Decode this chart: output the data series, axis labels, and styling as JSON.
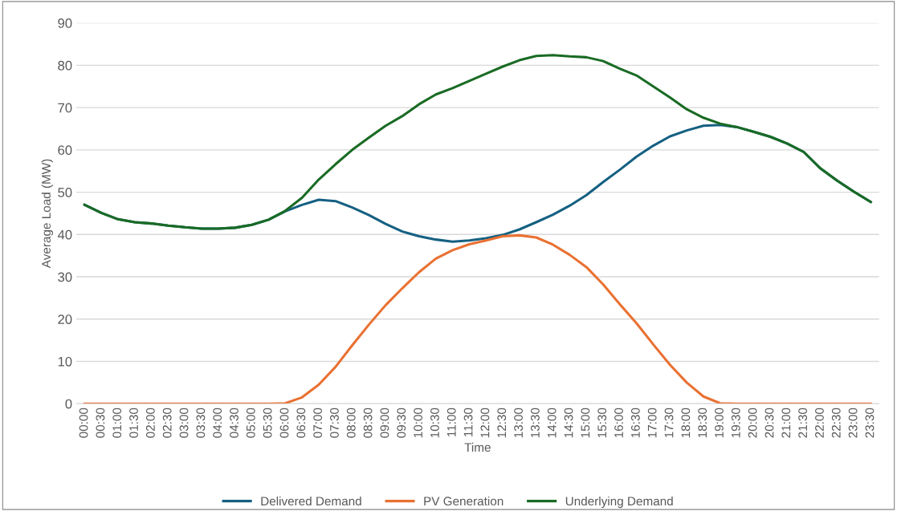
{
  "chart_data": {
    "type": "line",
    "xlabel": "Time",
    "ylabel": "Average Load (MW)",
    "categories": [
      "00:00",
      "00:30",
      "01:00",
      "01:30",
      "02:00",
      "02:30",
      "03:00",
      "03:30",
      "04:00",
      "04:30",
      "05:00",
      "05:30",
      "06:00",
      "06:30",
      "07:00",
      "07:30",
      "08:00",
      "08:30",
      "09:00",
      "09:30",
      "10:00",
      "10:30",
      "11:00",
      "11:30",
      "12:00",
      "12:30",
      "13:00",
      "13:30",
      "14:00",
      "14:30",
      "15:00",
      "15:30",
      "16:00",
      "16:30",
      "17:00",
      "17:30",
      "18:00",
      "18:30",
      "19:00",
      "19:30",
      "20:00",
      "20:30",
      "21:00",
      "21:30",
      "22:00",
      "22:30",
      "23:00",
      "23:30"
    ],
    "series": [
      {
        "name": "Delivered Demand",
        "color": "#156082",
        "values": [
          47,
          45.1,
          43.6,
          42.9,
          42.6,
          42.1,
          41.7,
          41.4,
          41.4,
          41.6,
          42.3,
          43.5,
          45.5,
          47,
          48.2,
          47.9,
          46.4,
          44.6,
          42.5,
          40.7,
          39.6,
          38.8,
          38.3,
          38.6,
          39.1,
          39.9,
          41.2,
          42.9,
          44.7,
          46.8,
          49.3,
          52.4,
          55.3,
          58.4,
          61,
          63.2,
          64.6,
          65.7,
          65.9,
          65.4,
          64.3,
          63.1,
          61.5,
          59.5,
          55.6,
          52.7,
          50.1,
          47.7
        ]
      },
      {
        "name": "PV Generation",
        "color": "#e97132",
        "values": [
          0,
          0,
          0,
          0,
          0,
          0,
          0,
          0,
          0,
          0,
          0,
          0,
          0.1,
          1.5,
          4.5,
          8.7,
          13.8,
          18.7,
          23.3,
          27.3,
          31.1,
          34.3,
          36.3,
          37.7,
          38.6,
          39.6,
          39.8,
          39.3,
          37.6,
          35.2,
          32.3,
          28.2,
          23.5,
          19,
          14,
          9.2,
          5,
          1.7,
          0.1,
          0,
          0,
          0,
          0,
          0,
          0,
          0,
          0,
          0
        ]
      },
      {
        "name": "Underlying Demand",
        "color": "#196b24",
        "values": [
          47,
          45.1,
          43.6,
          42.9,
          42.6,
          42.1,
          41.7,
          41.4,
          41.4,
          41.6,
          42.3,
          43.5,
          45.6,
          48.7,
          53,
          56.6,
          60,
          62.9,
          65.7,
          68,
          70.8,
          73.1,
          74.6,
          76.3,
          78,
          79.7,
          81.2,
          82.2,
          82.4,
          82.1,
          81.9,
          81,
          79.2,
          77.6,
          75,
          72.4,
          69.6,
          67.6,
          66.2,
          65.4,
          64.3,
          63.1,
          61.5,
          59.5,
          55.6,
          52.7,
          50.1,
          47.7
        ]
      }
    ],
    "ylim": [
      0,
      90
    ],
    "yticks": [
      0,
      10,
      20,
      30,
      40,
      50,
      60,
      70,
      80,
      90
    ],
    "grid": "y",
    "legend": "bottom",
    "marker": "none",
    "line_style": "solid"
  }
}
